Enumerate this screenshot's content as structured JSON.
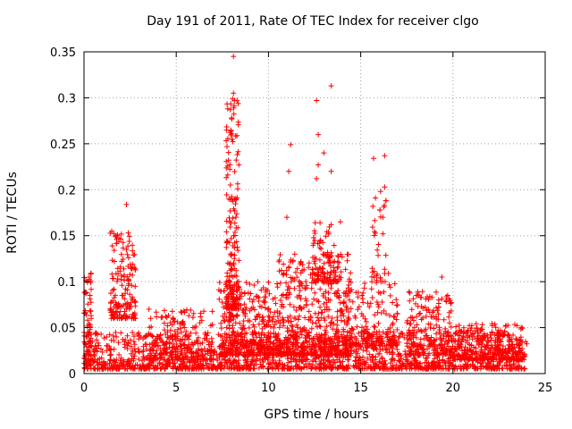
{
  "chart_data": {
    "type": "scatter",
    "title": "Day 191 of 2011, Rate Of TEC Index for receiver clgo",
    "xlabel": "GPS time / hours",
    "ylabel": "ROTI / TECUs",
    "xlim": [
      0,
      25
    ],
    "ylim": [
      0,
      0.35
    ],
    "xticks": [
      "0",
      "5",
      "10",
      "15",
      "20",
      "25"
    ],
    "yticks": [
      "0",
      "0.05",
      "0.1",
      "0.15",
      "0.2",
      "0.25",
      "0.3",
      "0.35"
    ],
    "grid": true,
    "marker": "+",
    "marker_color": "#ff0000",
    "outliers": [
      {
        "x": 8.1,
        "y": 0.345
      },
      {
        "x": 8.1,
        "y": 0.305
      },
      {
        "x": 13.4,
        "y": 0.313
      },
      {
        "x": 12.6,
        "y": 0.297
      },
      {
        "x": 12.7,
        "y": 0.26
      },
      {
        "x": 11.2,
        "y": 0.249
      },
      {
        "x": 16.3,
        "y": 0.237
      },
      {
        "x": 15.7,
        "y": 0.234
      },
      {
        "x": 13.0,
        "y": 0.24
      },
      {
        "x": 13.4,
        "y": 0.22
      },
      {
        "x": 12.7,
        "y": 0.227
      },
      {
        "x": 12.6,
        "y": 0.212
      },
      {
        "x": 11.1,
        "y": 0.22
      },
      {
        "x": 16.3,
        "y": 0.203
      },
      {
        "x": 15.8,
        "y": 0.191
      },
      {
        "x": 2.3,
        "y": 0.184
      },
      {
        "x": 11.0,
        "y": 0.17
      },
      {
        "x": 16.2,
        "y": 0.17
      },
      {
        "x": 13.9,
        "y": 0.165
      },
      {
        "x": 16.5,
        "y": 0.109
      },
      {
        "x": 19.4,
        "y": 0.105
      },
      {
        "x": 1.5,
        "y": 0.155
      },
      {
        "x": 2.4,
        "y": 0.153
      },
      {
        "x": 1.7,
        "y": 0.149
      }
    ],
    "clusters": [
      {
        "x_range": [
          0.0,
          24.0
        ],
        "y_range": [
          0.005,
          0.045
        ],
        "count": 1700
      },
      {
        "x_range": [
          7.3,
          10.5
        ],
        "y_range": [
          0.02,
          0.1
        ],
        "count": 380
      },
      {
        "x_range": [
          7.7,
          8.4
        ],
        "y_range": [
          0.07,
          0.3
        ],
        "count": 190
      },
      {
        "x_range": [
          10.5,
          14.5
        ],
        "y_range": [
          0.02,
          0.13
        ],
        "count": 520
      },
      {
        "x_range": [
          12.4,
          13.8
        ],
        "y_range": [
          0.1,
          0.165
        ],
        "count": 90
      },
      {
        "x_range": [
          1.4,
          2.8
        ],
        "y_range": [
          0.06,
          0.155
        ],
        "count": 160
      },
      {
        "x_range": [
          0.0,
          0.4
        ],
        "y_range": [
          0.01,
          0.112
        ],
        "count": 70
      },
      {
        "x_range": [
          14.0,
          17.0
        ],
        "y_range": [
          0.03,
          0.1
        ],
        "count": 200
      },
      {
        "x_range": [
          15.6,
          16.4
        ],
        "y_range": [
          0.1,
          0.2
        ],
        "count": 35
      },
      {
        "x_range": [
          17.5,
          20.0
        ],
        "y_range": [
          0.02,
          0.09
        ],
        "count": 200
      },
      {
        "x_range": [
          3.5,
          7.0
        ],
        "y_range": [
          0.015,
          0.07
        ],
        "count": 200
      },
      {
        "x_range": [
          20.0,
          23.8
        ],
        "y_range": [
          0.015,
          0.055
        ],
        "count": 300
      }
    ]
  }
}
